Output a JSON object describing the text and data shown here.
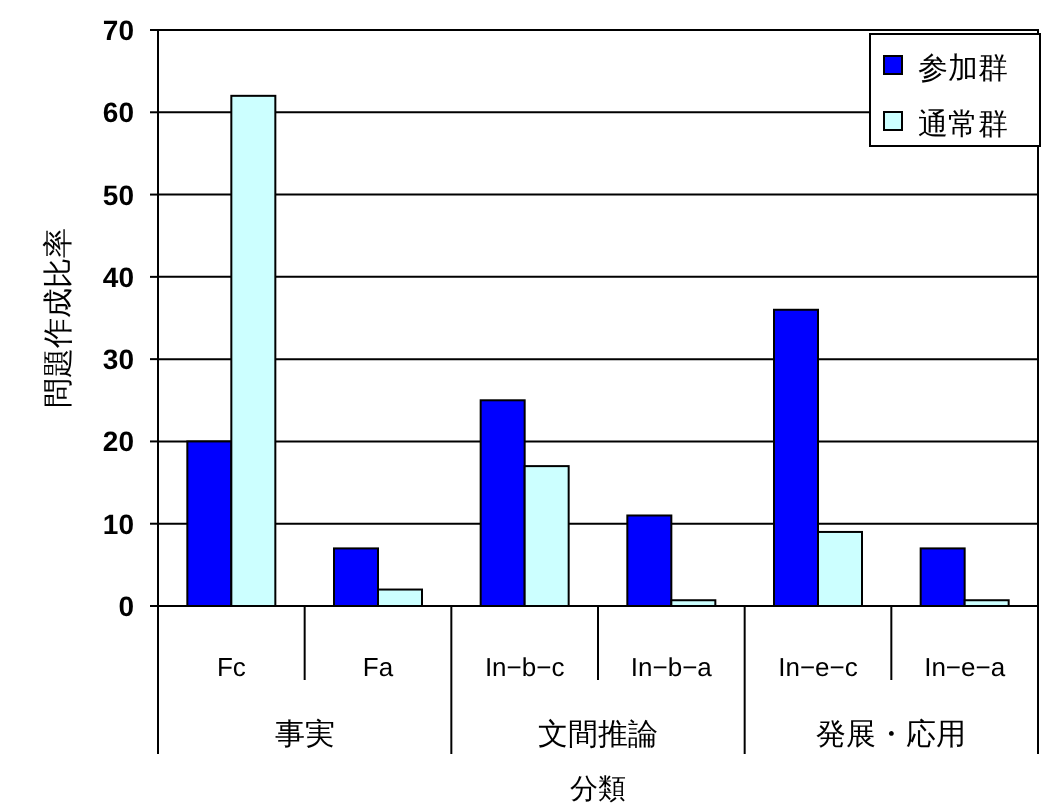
{
  "chart_data": {
    "type": "bar",
    "xlabel": "分類",
    "ylabel": "問題作成比率",
    "categories": [
      "Fc",
      "Fa",
      "In−b−c",
      "In−b−a",
      "In−e−c",
      "In−e−a"
    ],
    "annotations": [
      "事実",
      "文間推論",
      "発展・応用"
    ],
    "series": [
      {
        "name": "参加群",
        "color": "#0000ff",
        "values": [
          20,
          7,
          25,
          11,
          36,
          7
        ]
      },
      {
        "name": "通常群",
        "color": "#ccffff",
        "values": [
          62,
          2,
          17,
          0.7,
          9,
          0.7
        ]
      }
    ],
    "ylim": [
      0,
      70
    ],
    "yticks": [
      0,
      10,
      20,
      30,
      40,
      50,
      60,
      70
    ],
    "grid": "y",
    "legend": "top right"
  }
}
